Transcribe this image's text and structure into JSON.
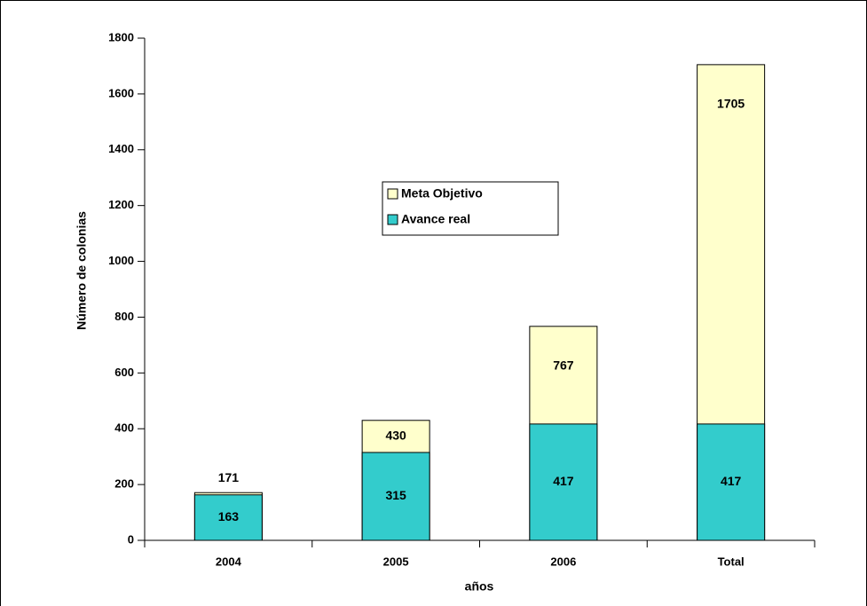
{
  "chart_data": {
    "type": "bar",
    "x_label": "años",
    "y_label": "Número de colonias",
    "categories": [
      "2004",
      "2005",
      "2006",
      "Total"
    ],
    "series": [
      {
        "name": "Meta Objetivo",
        "color": "#ffffcc",
        "values": [
          171,
          430,
          767,
          1705
        ]
      },
      {
        "name": "Avance real",
        "color": "#33cccc",
        "values": [
          163,
          315,
          417,
          417
        ]
      }
    ],
    "ylim": [
      0,
      1800
    ],
    "yticks": [
      0,
      200,
      400,
      600,
      800,
      1000,
      1200,
      1400,
      1600,
      1800
    ],
    "grid": false
  }
}
